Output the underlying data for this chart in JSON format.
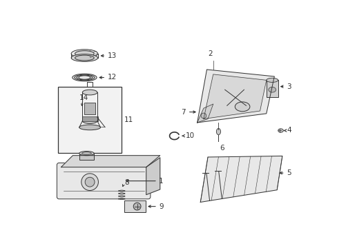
{
  "bg_color": "#ffffff",
  "line_color": "#333333",
  "label_color": "#000000",
  "fig_width": 4.89,
  "fig_height": 3.6,
  "dpi": 100,
  "lw": 0.7,
  "fs": 7.5
}
